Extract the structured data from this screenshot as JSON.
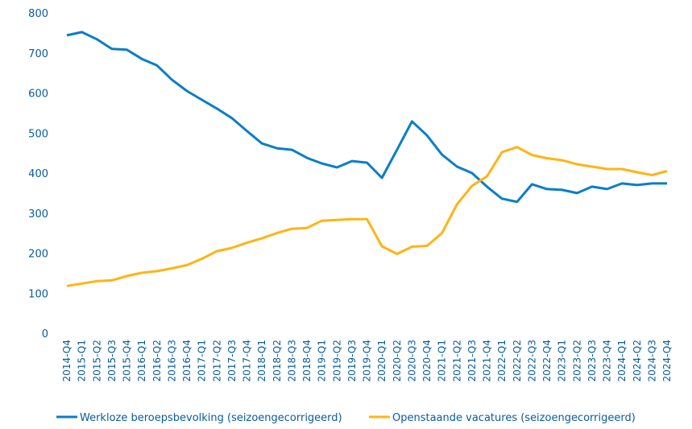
{
  "chart_data": {
    "type": "line",
    "title": "",
    "xlabel": "",
    "ylabel": "",
    "ylim": [
      0,
      800
    ],
    "yticks": [
      "0",
      "100",
      "200",
      "300",
      "400",
      "500",
      "600",
      "700",
      "800"
    ],
    "grid": false,
    "legend_position": "bottom",
    "categories": [
      "2014-Q4",
      "2015-Q1",
      "2015-Q2",
      "2015-Q3",
      "2015-Q4",
      "2016-Q1",
      "2016-Q2",
      "2016-Q3",
      "2016-Q4",
      "2017-Q1",
      "2017-Q2",
      "2017-Q3",
      "2017-Q4",
      "2018-Q1",
      "2018-Q2",
      "2018-Q3",
      "2018-Q4",
      "2019-Q1",
      "2019-Q2",
      "2019-Q3",
      "2019-Q4",
      "2020-Q1",
      "2020-Q2",
      "2020-Q3",
      "2020-Q4",
      "2021-Q1",
      "2021-Q2",
      "2021-Q3",
      "2021-Q4",
      "2022-Q1",
      "2022-Q2",
      "2022-Q3",
      "2022-Q4",
      "2023-Q1",
      "2023-Q2",
      "2023-Q3",
      "2023-Q4",
      "2024-Q1",
      "2024-Q2",
      "2024-Q3",
      "2024-Q4"
    ],
    "series": [
      {
        "name": "Werkloze beroepsbevolking (seizoengecorrigeerd)",
        "color": "#0a7ec6",
        "values": [
          744,
          752,
          734,
          710,
          708,
          685,
          669,
          633,
          605,
          583,
          561,
          537,
          505,
          474,
          462,
          458,
          438,
          424,
          414,
          430,
          426,
          388,
          458,
          529,
          494,
          446,
          416,
          400,
          366,
          336,
          328,
          372,
          360,
          358,
          350,
          366,
          360,
          374,
          370,
          374,
          374
        ]
      },
      {
        "name": "Openstaande vacatures (seizoengecorrigeerd)",
        "color": "#ffb414",
        "values": [
          118,
          124,
          130,
          132,
          143,
          151,
          155,
          162,
          170,
          186,
          205,
          213,
          226,
          237,
          250,
          261,
          263,
          281,
          283,
          285,
          285,
          217,
          198,
          216,
          218,
          250,
          322,
          368,
          392,
          452,
          465,
          445,
          437,
          432,
          422,
          416,
          410,
          410,
          402,
          395,
          405
        ]
      }
    ]
  }
}
